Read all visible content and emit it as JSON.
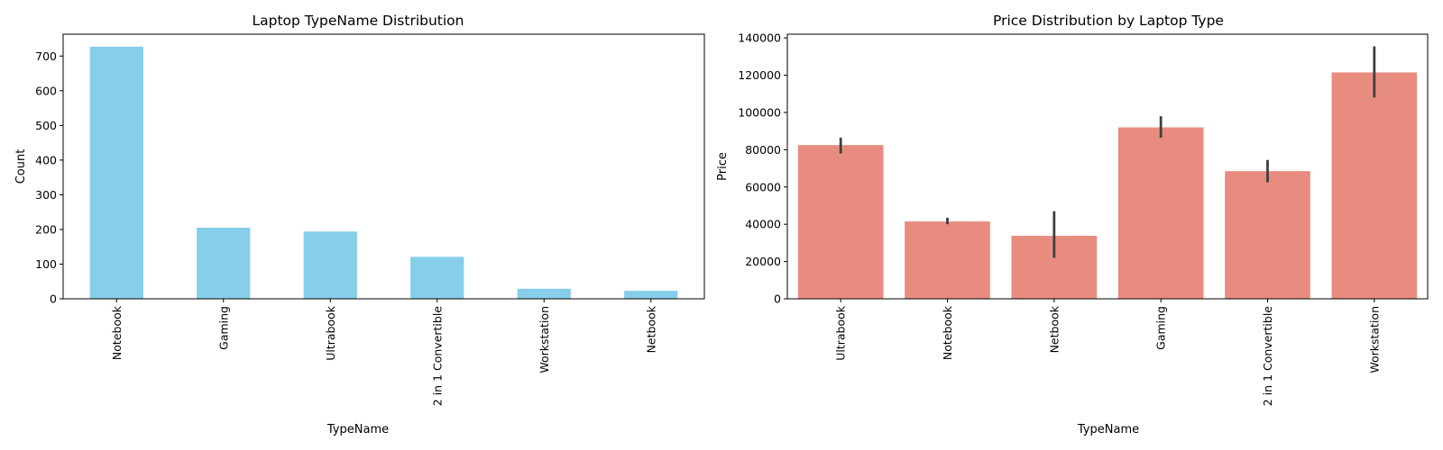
{
  "chart_data": [
    {
      "type": "bar",
      "title": "Laptop TypeName Distribution",
      "xlabel": "TypeName",
      "ylabel": "Count",
      "categories": [
        "Notebook",
        "Gaming",
        "Ultrabook",
        "2 in 1 Convertible",
        "Workstation",
        "Netbook"
      ],
      "values": [
        727,
        205,
        194,
        121,
        29,
        23
      ],
      "ylim": [
        0,
        763
      ],
      "yticks": [
        0,
        100,
        200,
        300,
        400,
        500,
        600,
        700
      ],
      "ytick_labels": [
        "0",
        "100",
        "200",
        "300",
        "400",
        "500",
        "600",
        "700"
      ],
      "grid": false,
      "color": "#87ceeb"
    },
    {
      "type": "bar",
      "title": "Price Distribution by Laptop Type",
      "xlabel": "TypeName",
      "ylabel": "Price",
      "categories": [
        "Ultrabook",
        "Notebook",
        "Netbook",
        "Gaming",
        "2 in 1 Convertible",
        "Workstation"
      ],
      "values": [
        82500,
        41500,
        33800,
        92000,
        68500,
        121500
      ],
      "error_bars": [
        [
          78000,
          86500
        ],
        [
          40000,
          43500
        ],
        [
          22000,
          47000
        ],
        [
          86500,
          98000
        ],
        [
          62500,
          74500
        ],
        [
          108000,
          135500
        ]
      ],
      "ylim": [
        0,
        142000
      ],
      "yticks": [
        0,
        20000,
        40000,
        60000,
        80000,
        100000,
        120000,
        140000
      ],
      "ytick_labels": [
        "0",
        "20000",
        "40000",
        "60000",
        "80000",
        "100000",
        "120000",
        "140000"
      ],
      "grid": false,
      "color": "#e88c80",
      "error_color": "#3f3f3f"
    }
  ]
}
